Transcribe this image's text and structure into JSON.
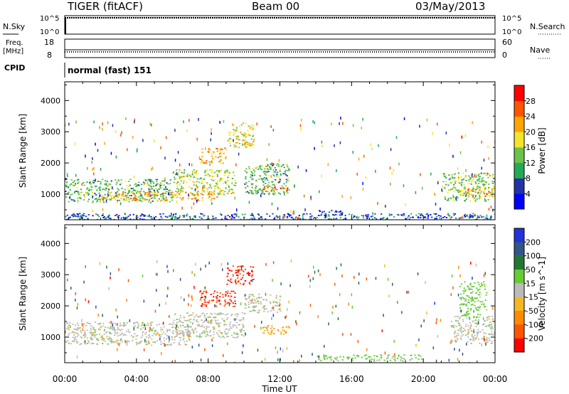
{
  "header": {
    "radar": "TIGER (fitACF)",
    "beam": "Beam 00",
    "date": "03/May/2013"
  },
  "status": {
    "nsky_label": "N.Sky",
    "nsearch_label": "N.Search",
    "noise_ticks": [
      "10^5",
      "10^0"
    ],
    "freq_label": "Freq.",
    "freq_unit": "[MHz]",
    "freq_ticks": [
      "18",
      "8"
    ],
    "nave_label": "Nave",
    "nave_ticks": [
      "60",
      "0"
    ],
    "cpid_label": "CPID",
    "cpid_value": "normal (fast) 151"
  },
  "colors": {
    "power": [
      "#0000ff",
      "#2233aa",
      "#22aa55",
      "#6cc24a",
      "#f5e52a",
      "#ffa500",
      "#ff5500",
      "#ff0000"
    ],
    "velocity": [
      "#2233dd",
      "#335588",
      "#227733",
      "#66cc33",
      "#bbbbbb",
      "#f5b822",
      "#ff8a00",
      "#ff5500",
      "#ff0000"
    ],
    "ground_scatter": "#bbbbbb"
  },
  "chart_data": [
    {
      "type": "heatmap",
      "title": "Power",
      "xlabel": "Time UT",
      "ylabel": "Slant Range [km]",
      "colorbar_label": "Power [dB]",
      "colorbar_ticks": [
        "28",
        "24",
        "20",
        "16",
        "12",
        "8",
        "4"
      ],
      "x_ticks": [
        "00:00",
        "04:00",
        "08:00",
        "12:00",
        "16:00",
        "20:00",
        "00:00"
      ],
      "y_ticks": [
        "4000",
        "3000",
        "2000",
        "1000"
      ],
      "xlim_hours": [
        0,
        24
      ],
      "ylim_km": [
        180,
        4600
      ],
      "regions": [
        {
          "t0": 0.0,
          "t1": 6.0,
          "r0": 750,
          "r1": 1500,
          "value_db": 14
        },
        {
          "t0": 2.0,
          "t1": 8.5,
          "r0": 800,
          "r1": 1100,
          "value_db": 24
        },
        {
          "t0": 6.0,
          "t1": 9.5,
          "r0": 1000,
          "r1": 1800,
          "value_db": 18
        },
        {
          "t0": 7.5,
          "t1": 9.0,
          "r0": 2000,
          "r1": 2500,
          "value_db": 24
        },
        {
          "t0": 9.0,
          "t1": 10.5,
          "r0": 2500,
          "r1": 3300,
          "value_db": 20
        },
        {
          "t0": 10.0,
          "t1": 12.5,
          "r0": 1000,
          "r1": 2000,
          "value_db": 14
        },
        {
          "t0": 11.0,
          "t1": 12.5,
          "r0": 1100,
          "r1": 1300,
          "value_db": 26
        },
        {
          "t0": 14.0,
          "t1": 15.5,
          "r0": 300,
          "r1": 500,
          "value_db": 6
        },
        {
          "t0": 21.0,
          "t1": 24.0,
          "r0": 800,
          "r1": 1700,
          "value_db": 16
        },
        {
          "t0": 22.0,
          "t1": 24.0,
          "r0": 900,
          "r1": 1200,
          "value_db": 24
        },
        {
          "t0": 0.0,
          "t1": 24.0,
          "r0": 200,
          "r1": 400,
          "value_db": 8
        }
      ]
    },
    {
      "type": "heatmap",
      "title": "Velocity",
      "xlabel": "Time UT",
      "ylabel": "Slant Range [km]",
      "colorbar_label": "Velocity [m s^-1]",
      "colorbar_ticks": [
        "200",
        "100",
        "50",
        "15",
        "-15",
        "-50",
        "-100",
        "-200"
      ],
      "x_ticks": [
        "00:00",
        "04:00",
        "08:00",
        "12:00",
        "16:00",
        "20:00",
        "00:00"
      ],
      "y_ticks": [
        "4000",
        "3000",
        "2000",
        "1000"
      ],
      "xlim_hours": [
        0,
        24
      ],
      "ylim_km": [
        180,
        4600
      ],
      "regions": [
        {
          "t0": 0.0,
          "t1": 7.0,
          "r0": 750,
          "r1": 1500,
          "value_ms": 0
        },
        {
          "t0": 6.0,
          "t1": 10.0,
          "r0": 1000,
          "r1": 1800,
          "value_ms": 0
        },
        {
          "t0": 7.5,
          "t1": 9.5,
          "r0": 2000,
          "r1": 2500,
          "value_ms": -200
        },
        {
          "t0": 9.0,
          "t1": 10.5,
          "r0": 2700,
          "r1": 3300,
          "value_ms": -200
        },
        {
          "t0": 10.0,
          "t1": 12.0,
          "r0": 1800,
          "r1": 2400,
          "value_ms": 0
        },
        {
          "t0": 11.0,
          "t1": 12.5,
          "r0": 1100,
          "r1": 1400,
          "value_ms": -50
        },
        {
          "t0": 14.0,
          "t1": 20.0,
          "r0": 250,
          "r1": 450,
          "value_ms": 30
        },
        {
          "t0": 21.5,
          "t1": 24.0,
          "r0": 800,
          "r1": 1700,
          "value_ms": 0
        },
        {
          "t0": 22.0,
          "t1": 23.5,
          "r0": 1700,
          "r1": 2800,
          "value_ms": 30
        }
      ]
    }
  ]
}
